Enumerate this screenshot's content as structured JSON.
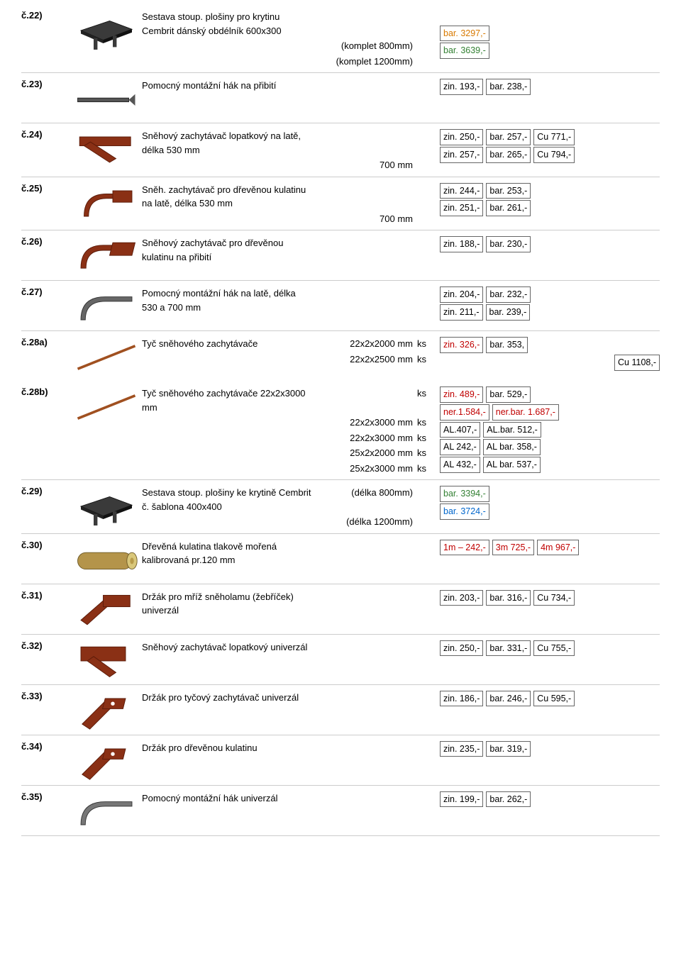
{
  "rows": [
    {
      "id": "č.22)",
      "icon": "platform",
      "lines": [
        {
          "main": "Sestava stoup. plošiny pro krytinu Cembrit dánský obdélník 600x300",
          "sub": "",
          "ks": "",
          "prices": []
        },
        {
          "main": "",
          "sub": "(komplet 800mm)",
          "ks": "",
          "prices": [
            {
              "text": "bar. 3297,-",
              "cls": "c-orange"
            }
          ]
        },
        {
          "main": "",
          "sub": "(komplet 1200mm)",
          "ks": "",
          "prices": [
            {
              "text": "bar. 3639,-",
              "cls": "c-green"
            }
          ]
        }
      ]
    },
    {
      "id": "č.23)",
      "icon": "hook-flat",
      "lines": [
        {
          "main": "Pomocný montážní hák na  přibití",
          "sub": "",
          "ks": "",
          "prices": [
            {
              "text": "zin. 193,-"
            },
            {
              "text": "bar. 238,-"
            }
          ]
        }
      ]
    },
    {
      "id": "č.24)",
      "icon": "bracket-red",
      "lines": [
        {
          "main": "Sněhový zachytávač lopatkový na latě, délka 530 mm",
          "sub": "",
          "ks": "",
          "prices": [
            {
              "text": "zin. 250,-"
            },
            {
              "text": "bar. 257,-"
            },
            {
              "text": "Cu 771,-"
            }
          ]
        },
        {
          "main": "",
          "sub": "700 mm",
          "ks": "",
          "prices": [
            {
              "text": "zin. 257,-"
            },
            {
              "text": "bar. 265,-"
            },
            {
              "text": "Cu 794,-"
            }
          ]
        }
      ]
    },
    {
      "id": "č.25)",
      "icon": "hook-red",
      "lines": [
        {
          "main": "Sněh. zachytávač pro dřevěnou kulatinu na latě, délka 530 mm",
          "sub": "",
          "ks": "",
          "prices": [
            {
              "text": "zin. 244,-"
            },
            {
              "text": "bar. 253,-"
            }
          ]
        },
        {
          "main": "",
          "sub": "700 mm",
          "ks": "",
          "prices": [
            {
              "text": "zin. 251,-"
            },
            {
              "text": "bar. 261,-"
            }
          ]
        }
      ]
    },
    {
      "id": "č.26)",
      "icon": "hook-red2",
      "lines": [
        {
          "main": "Sněhový zachytávač pro dřevěnou kulatinu na přibití",
          "sub": "",
          "ks": "",
          "prices": [
            {
              "text": "zin. 188,-"
            },
            {
              "text": "bar. 230,-"
            }
          ]
        }
      ]
    },
    {
      "id": "č.27)",
      "icon": "hook-grey",
      "lines": [
        {
          "main": "Pomocný montážní hák na latě, délka 530 a 700 mm",
          "sub": "",
          "ks": "",
          "prices": [
            {
              "text": "zin. 204,-"
            },
            {
              "text": "bar. 232,-"
            }
          ]
        },
        {
          "main": "",
          "sub": "",
          "ks": "",
          "prices": [
            {
              "text": "zin. 211,-"
            },
            {
              "text": "bar. 239,-"
            }
          ]
        }
      ]
    },
    {
      "id": "č.28a)",
      "icon": "rod",
      "noBottomBorder": true,
      "lines": [
        {
          "main": "Tyč sněhového zachytávače",
          "sub": "22x2x2000 mm",
          "ks": "ks",
          "prices": [
            {
              "text": "zin. 326,-",
              "cls": "c-red"
            },
            {
              "text": "bar. 353,"
            }
          ]
        },
        {
          "main": "",
          "sub": "22x2x2500 mm",
          "ks": "ks",
          "prices": [
            {
              "text": "Cu 1108,-"
            }
          ],
          "priceAlign": "end"
        }
      ]
    },
    {
      "id": "č.28b)",
      "icon": "rod",
      "lines": [
        {
          "main": "Tyč sněhového zachytávače 22x2x3000 mm",
          "sub": "",
          "ks": "ks",
          "prices": [
            {
              "text": "zin. 489,-",
              "cls": "c-red"
            },
            {
              "text": "bar. 529,-"
            }
          ]
        },
        {
          "main": "",
          "sub": "22x2x3000 mm",
          "ks": "ks",
          "prices": [
            {
              "text": "ner.1.584,-",
              "cls": "c-red"
            },
            {
              "text": "ner.bar. 1.687,-",
              "cls": "c-red"
            }
          ]
        },
        {
          "main": "",
          "sub": "22x2x3000 mm",
          "ks": "ks",
          "prices": [
            {
              "text": "AL.407,-"
            },
            {
              "text": "AL.bar. 512,-"
            }
          ]
        },
        {
          "main": "",
          "sub": "25x2x2000 mm",
          "ks": "ks",
          "prices": [
            {
              "text": "AL 242,-"
            },
            {
              "text": "AL bar. 358,-"
            }
          ]
        },
        {
          "main": "",
          "sub": "25x2x3000 mm",
          "ks": "ks",
          "prices": [
            {
              "text": "AL 432,-"
            },
            {
              "text": "AL bar. 537,-"
            }
          ]
        }
      ]
    },
    {
      "id": "č.29)",
      "icon": "platform",
      "lines": [
        {
          "main": "Sestava stoup. plošiny ke krytině Cembrit č. šablona 400x400",
          "sub": "(délka 800mm)",
          "ks": "",
          "prices": [
            {
              "text": "bar. 3394,-",
              "cls": "c-green"
            }
          ]
        },
        {
          "main": "",
          "sub": "(délka 1200mm)",
          "ks": "",
          "prices": [
            {
              "text": "bar. 3724,-",
              "cls": "c-blue"
            }
          ]
        }
      ]
    },
    {
      "id": "č.30)",
      "icon": "log",
      "lines": [
        {
          "main": "Dřevěná kulatina tlakově mořená kalibrovaná pr.120 mm",
          "sub": "",
          "ks": "",
          "prices": [
            {
              "text": "1m – 242,-",
              "cls": "c-red"
            },
            {
              "text": "3m  725,-",
              "cls": "c-red"
            },
            {
              "text": "4m  967,-",
              "cls": "c-red"
            }
          ]
        }
      ]
    },
    {
      "id": "č.31)",
      "icon": "bracket-red3",
      "lines": [
        {
          "main": "Držák pro mříž sněholamu (žebříček) univerzál",
          "sub": "",
          "ks": "",
          "prices": [
            {
              "text": "zin. 203,-"
            },
            {
              "text": "bar. 316,-"
            },
            {
              "text": "Cu 734,-"
            }
          ]
        }
      ]
    },
    {
      "id": "č.32)",
      "icon": "bracket-red4",
      "lines": [
        {
          "main": "Sněhový zachytávač lopatkový univerzál",
          "sub": "",
          "ks": "",
          "prices": [
            {
              "text": "zin. 250,-"
            },
            {
              "text": "bar. 331,-"
            },
            {
              "text": "Cu 755,-"
            }
          ]
        }
      ]
    },
    {
      "id": "č.33)",
      "icon": "bracket-red5",
      "lines": [
        {
          "main": "Držák pro tyčový zachytávač univerzál",
          "sub": "",
          "ks": "",
          "prices": [
            {
              "text": "zin. 186,-"
            },
            {
              "text": "bar. 246,-"
            },
            {
              "text": "Cu 595,-"
            }
          ]
        }
      ]
    },
    {
      "id": "č.34)",
      "icon": "bracket-red5",
      "lines": [
        {
          "main": "Držák pro dřevěnou kulatinu",
          "sub": "",
          "ks": "",
          "prices": [
            {
              "text": "zin. 235,-"
            },
            {
              "text": "bar. 319,-"
            }
          ]
        }
      ]
    },
    {
      "id": "č.35)",
      "icon": "hook-grey2",
      "lines": [
        {
          "main": "Pomocný montážní hák univerzál",
          "sub": "",
          "ks": "",
          "prices": [
            {
              "text": "zin. 199,-"
            },
            {
              "text": "bar. 262,-"
            }
          ]
        }
      ]
    }
  ],
  "icons": {
    "platform": {
      "fill": "#3a3a3a",
      "stroke": "#111",
      "shape": "platform"
    },
    "hook-flat": {
      "fill": "#555",
      "stroke": "#222",
      "shape": "flat"
    },
    "bracket-red": {
      "fill": "#8a3015",
      "stroke": "#5a1a08",
      "shape": "bracket"
    },
    "hook-red": {
      "fill": "#8a3015",
      "stroke": "#5a1a08",
      "shape": "hook"
    },
    "hook-red2": {
      "fill": "#8a3015",
      "stroke": "#5a1a08",
      "shape": "hook2"
    },
    "hook-grey": {
      "fill": "#666",
      "stroke": "#333",
      "shape": "hook3"
    },
    "rod": {
      "fill": "#a05020",
      "stroke": "#5a2a10",
      "shape": "rod"
    },
    "log": {
      "fill": "#b4944a",
      "stroke": "#6e5a28",
      "shape": "log"
    },
    "bracket-red3": {
      "fill": "#8a3015",
      "stroke": "#5a1a08",
      "shape": "bracket3"
    },
    "bracket-red4": {
      "fill": "#8a3015",
      "stroke": "#5a1a08",
      "shape": "bracket4"
    },
    "bracket-red5": {
      "fill": "#8a3015",
      "stroke": "#5a1a08",
      "shape": "bracket5"
    },
    "hook-grey2": {
      "fill": "#777",
      "stroke": "#333",
      "shape": "hook3"
    }
  }
}
